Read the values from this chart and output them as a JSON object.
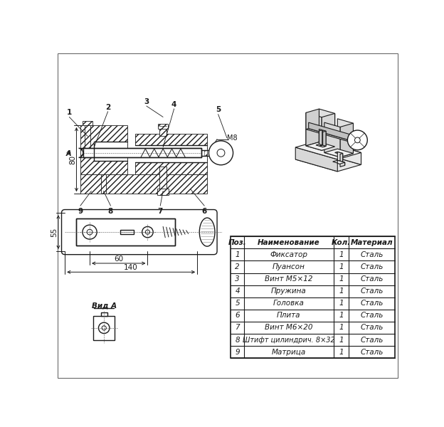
{
  "bg_color": "#ffffff",
  "line_color": "#1a1a1a",
  "hatch_color": "#1a1a1a",
  "table_headers": [
    "Поз.",
    "Наименование",
    "Кол.",
    "Материал"
  ],
  "table_rows": [
    [
      "1",
      "Фиксатор",
      "1",
      "Сталь"
    ],
    [
      "2",
      "Пуансон",
      "1",
      "Сталь"
    ],
    [
      "3",
      "Винт М5×12",
      "1",
      "Сталь"
    ],
    [
      "4",
      "Пружина",
      "1",
      "Сталь"
    ],
    [
      "5",
      "Головка",
      "1",
      "Сталь"
    ],
    [
      "6",
      "Плита",
      "1",
      "Сталь"
    ],
    [
      "7",
      "Винт М6×20",
      "1",
      "Сталь"
    ],
    [
      "8",
      "Штифт цилиндрич. 8×32",
      "1",
      "Сталь"
    ],
    [
      "9",
      "Матрица",
      "1",
      "Сталь"
    ]
  ],
  "label_vida": "Вид А",
  "dim_80": "80",
  "dim_55": "55",
  "dim_60": "60",
  "dim_140": "140",
  "dim_m8": "М8"
}
